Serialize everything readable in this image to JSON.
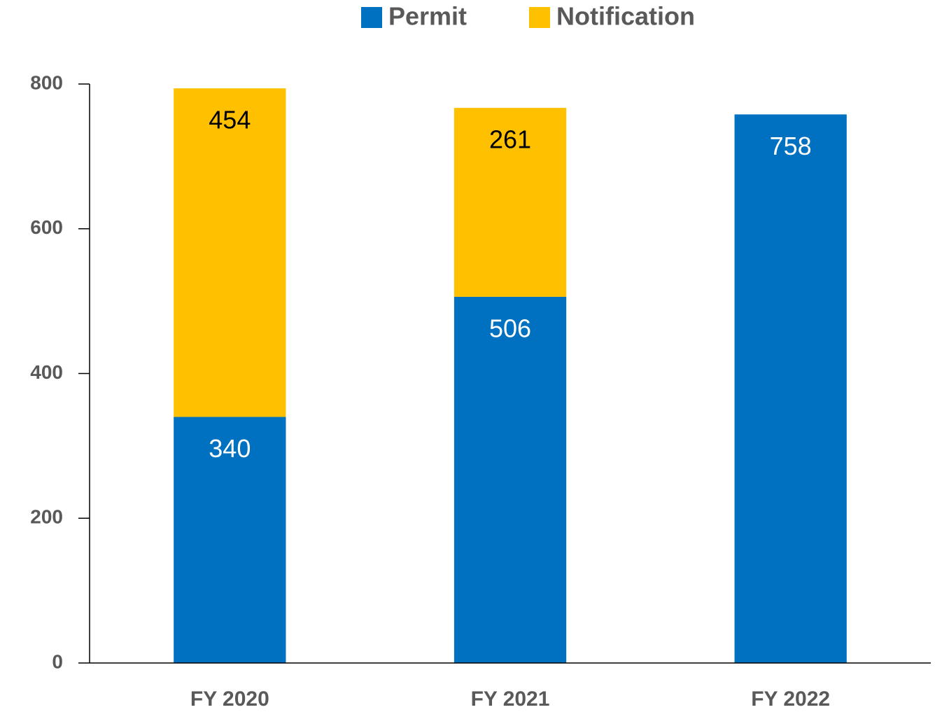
{
  "chart_data": {
    "type": "stacked_bar",
    "categories": [
      "FY 2020",
      "FY 2021",
      "FY 2022"
    ],
    "series": [
      {
        "name": "Permit",
        "color": "#0070c0",
        "values": [
          340,
          506,
          758
        ]
      },
      {
        "name": "Notification",
        "color": "#ffc000",
        "values": [
          454,
          261,
          null
        ]
      }
    ],
    "ylim": [
      0,
      800
    ],
    "yticks": [
      0,
      200,
      400,
      600,
      800
    ],
    "grid": false,
    "legend": "top"
  }
}
